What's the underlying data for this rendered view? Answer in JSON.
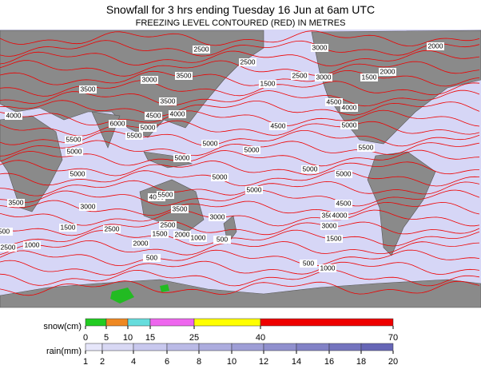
{
  "header": {
    "title": "Snowfall for 3 hrs ending Tuesday 16 Jun at 6am UTC",
    "subtitle": "FREEZING LEVEL CONTOURED (RED) IN METRES"
  },
  "map": {
    "contour_labels": [
      "2500",
      "2500",
      "3000",
      "2000",
      "3000",
      "3500",
      "3500",
      "1500",
      "2500",
      "3000",
      "1500",
      "2000",
      "3500",
      "4000",
      "4500",
      "4000",
      "4500",
      "4000",
      "5000",
      "6000",
      "5000",
      "5500",
      "5500",
      "4500",
      "5000",
      "5000",
      "5000",
      "5500",
      "5000",
      "5000",
      "5000",
      "5000",
      "5000",
      "5000",
      "4000",
      "5500",
      "3500",
      "4500",
      "3500",
      "4000",
      "3500",
      "3000",
      "3000",
      "2500",
      "1500",
      "3000",
      "2500",
      "1500",
      "2000",
      "1000",
      "500",
      "1500",
      "500",
      "2000",
      "2500",
      "1000",
      "500",
      "500",
      "1000"
    ]
  },
  "legend": {
    "snow": {
      "label": "snow(cm)",
      "ticks": [
        "0",
        "5",
        "10",
        "15",
        "25",
        "40",
        "70"
      ],
      "colors": [
        "#22cc22",
        "#ee8822",
        "#66dddd",
        "#ee66ee",
        "#ffff00",
        "#ee0000"
      ]
    },
    "rain": {
      "label": "rain(mm)",
      "ticks": [
        "1",
        "2",
        "4",
        "6",
        "8",
        "10",
        "12",
        "14",
        "16",
        "18",
        "20"
      ],
      "colors": [
        "#e6e6fa",
        "#d8d8f4",
        "#c8c8ee",
        "#babae6",
        "#acacde",
        "#9e9ed6",
        "#9090ce",
        "#8282c6",
        "#7474be",
        "#6666b6"
      ]
    }
  }
}
